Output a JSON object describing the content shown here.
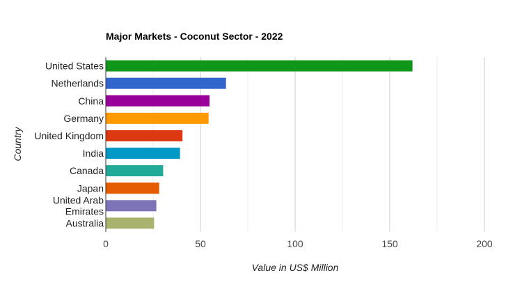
{
  "chart_data": {
    "type": "bar",
    "orientation": "horizontal",
    "title": "Major Markets - Coconut Sector - 2022",
    "xlabel": "Value in US$ Million",
    "ylabel": "Country",
    "xlim": [
      0,
      200
    ],
    "xticks": [
      0,
      50,
      100,
      150,
      200
    ],
    "minor_gridlines": [
      25,
      75,
      125,
      175
    ],
    "grid": true,
    "legend": "none",
    "categories": [
      "United States",
      "Netherlands",
      "China",
      "Germany",
      "United Kingdom",
      "India",
      "Canada",
      "Japan",
      "United Arab Emirates",
      "Australia"
    ],
    "category_lines": [
      [
        "United States"
      ],
      [
        "Netherlands"
      ],
      [
        "China"
      ],
      [
        "Germany"
      ],
      [
        "United Kingdom"
      ],
      [
        "India"
      ],
      [
        "Canada"
      ],
      [
        "Japan"
      ],
      [
        "United Arab",
        "Emirates"
      ],
      [
        "Australia"
      ]
    ],
    "values": [
      162,
      63.5,
      54.8,
      54.3,
      40.5,
      39.2,
      30.3,
      28.2,
      26.7,
      25.5
    ],
    "colors": [
      "#109618",
      "#3366cc",
      "#990099",
      "#ff9900",
      "#dc3912",
      "#0099c6",
      "#22aa99",
      "#e65c00",
      "#7c73b8",
      "#aab36e"
    ]
  }
}
